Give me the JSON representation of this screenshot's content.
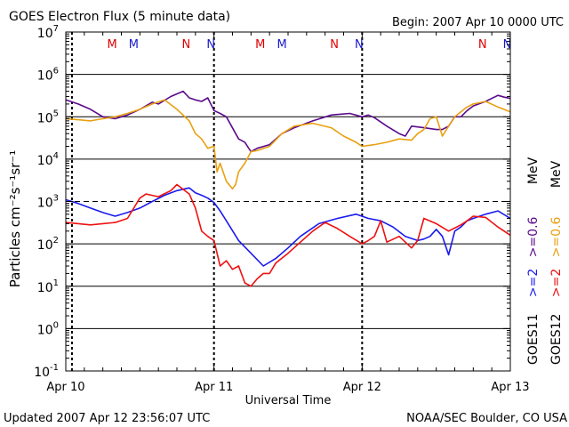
{
  "chart_data": {
    "type": "line",
    "title": "GOES Electron Flux (5 minute data)",
    "begin_label": "Begin: 2007 Apr 10 0000 UTC",
    "xlabel": "Universal Time",
    "ylabel": "Particles cm⁻²s⁻¹sr⁻¹",
    "y_scale": "log",
    "ylim_exp": [
      -1,
      7
    ],
    "y_ticks": [
      {
        "base": "10",
        "exp": "7"
      },
      {
        "base": "10",
        "exp": "6"
      },
      {
        "base": "10",
        "exp": "5"
      },
      {
        "base": "10",
        "exp": "4"
      },
      {
        "base": "10",
        "exp": "3"
      },
      {
        "base": "10",
        "exp": "2"
      },
      {
        "base": "10",
        "exp": "1"
      },
      {
        "base": "10",
        "exp": "0"
      },
      {
        "base": "10",
        "exp": "-1"
      }
    ],
    "xlim_hours": [
      0,
      72
    ],
    "x_ticks": [
      {
        "hour": 0,
        "label": "Apr 10"
      },
      {
        "hour": 24,
        "label": "Apr 11"
      },
      {
        "hour": 48,
        "label": "Apr 12"
      },
      {
        "hour": 72,
        "label": "Apr 13"
      }
    ],
    "dashed_hlines_exp": [
      3
    ],
    "dashed_vlines_hours": [
      1,
      24,
      48
    ],
    "mn_markers": [
      {
        "hour": 7.5,
        "label": "M",
        "color": "#e00000"
      },
      {
        "hour": 11,
        "label": "M",
        "color": "#1a1acc"
      },
      {
        "hour": 19.5,
        "label": "N",
        "color": "#e00000"
      },
      {
        "hour": 23.5,
        "label": "N",
        "color": "#1a1acc"
      },
      {
        "hour": 31.5,
        "label": "M",
        "color": "#e00000"
      },
      {
        "hour": 35,
        "label": "M",
        "color": "#1a1acc"
      },
      {
        "hour": 43.5,
        "label": "N",
        "color": "#e00000"
      },
      {
        "hour": 47.5,
        "label": "N",
        "color": "#1a1acc"
      },
      {
        "hour": 67.5,
        "label": "N",
        "color": "#e00000"
      },
      {
        "hour": 71.5,
        "label": "N",
        "color": "#1a1acc"
      }
    ],
    "series": [
      {
        "name": "GOES11 >=0.6 MeV",
        "color": "#5a0a8c",
        "x": [
          0,
          2,
          4,
          6,
          8,
          10,
          12,
          14,
          15,
          17,
          19,
          20,
          21,
          22,
          23,
          24,
          25,
          26,
          28,
          29,
          30,
          31,
          33,
          35,
          37,
          40,
          43,
          46,
          48,
          49,
          50,
          52,
          54,
          55,
          56,
          58,
          60,
          61,
          62,
          63,
          64,
          65,
          66,
          68,
          70,
          71,
          72
        ],
        "y": [
          250000.0,
          200000.0,
          150000.0,
          100000.0,
          90000.0,
          110000.0,
          150000.0,
          220000.0,
          200000.0,
          300000.0,
          400000.0,
          280000.0,
          250000.0,
          230000.0,
          280000.0,
          140000.0,
          120000.0,
          100000.0,
          30000.0,
          25000.0,
          15000.0,
          18000.0,
          22000.0,
          40000.0,
          55000.0,
          80000.0,
          110000.0,
          120000.0,
          100000.0,
          110000.0,
          95000.0,
          60000.0,
          40000.0,
          35000.0,
          60000.0,
          55000.0,
          50000.0,
          50000.0,
          60000.0,
          100000.0,
          100000.0,
          140000.0,
          180000.0,
          230000.0,
          320000.0,
          290000.0,
          270000.0
        ]
      },
      {
        "name": "GOES12 >=0.6 MeV",
        "color": "#e8a010",
        "x": [
          0,
          2,
          4,
          6,
          8,
          10,
          12,
          14,
          16,
          18,
          20,
          21,
          22,
          23,
          24,
          24.5,
          25,
          26,
          27,
          27.5,
          28,
          29,
          30,
          31,
          33,
          35,
          37,
          40,
          43,
          45,
          47,
          48,
          50,
          52,
          54,
          56,
          57,
          58,
          59,
          60,
          61,
          62,
          63,
          64,
          65,
          66,
          68,
          70,
          72
        ],
        "y": [
          90000.0,
          85000.0,
          80000.0,
          90000.0,
          100000.0,
          120000.0,
          150000.0,
          200000.0,
          250000.0,
          150000.0,
          80000.0,
          40000.0,
          30000.0,
          18000.0,
          20000.0,
          5000.0,
          8000.0,
          3000.0,
          2000.0,
          2500.0,
          5000.0,
          8000.0,
          15000.0,
          16000.0,
          20000.0,
          40000.0,
          60000.0,
          70000.0,
          55000.0,
          35000.0,
          25000.0,
          20000.0,
          22000.0,
          25000.0,
          30000.0,
          28000.0,
          40000.0,
          50000.0,
          90000.0,
          100000.0,
          35000.0,
          60000.0,
          100000.0,
          130000.0,
          170000.0,
          200000.0,
          230000.0,
          170000.0,
          130000.0
        ]
      },
      {
        "name": "GOES11 >=2 MeV",
        "color": "#1a1aee",
        "x": [
          0,
          2,
          4,
          6,
          8,
          10,
          12,
          14,
          16,
          18,
          20,
          21,
          22,
          23,
          24,
          25,
          26,
          28,
          30,
          32,
          34,
          36,
          38,
          41,
          44,
          47,
          49,
          51,
          53,
          55,
          57,
          58,
          59,
          60,
          61,
          62,
          63,
          64,
          65,
          66,
          68,
          70,
          72
        ],
        "y": [
          1100.0,
          900.0,
          700.0,
          550.0,
          450.0,
          550.0,
          700.0,
          1000.0,
          1400.0,
          1800.0,
          2100.0,
          1600.0,
          1400.0,
          1200.0,
          950.0,
          600.0,
          350.0,
          120.0,
          60.0,
          30.0,
          45.0,
          80.0,
          150.0,
          300.0,
          400.0,
          500.0,
          400.0,
          350.0,
          250.0,
          150.0,
          120.0,
          130.0,
          150.0,
          220.0,
          150.0,
          55.0,
          200.0,
          250.0,
          350.0,
          400.0,
          500.0,
          600.0,
          400.0
        ]
      },
      {
        "name": "GOES12 >=2 MeV",
        "color": "#ee1010",
        "x": [
          0,
          2,
          4,
          6,
          8,
          10,
          12,
          13,
          15,
          17,
          18,
          20,
          21,
          22,
          23,
          24,
          25,
          26,
          27,
          28,
          29,
          30,
          31,
          32,
          33,
          34,
          36,
          38,
          40,
          42,
          44,
          46,
          48,
          49,
          50,
          51,
          52,
          54,
          56,
          57,
          58,
          60,
          62,
          64,
          65,
          66,
          68,
          70,
          72
        ],
        "y": [
          320.0,
          300.0,
          280.0,
          300.0,
          320.0,
          400.0,
          1200.0,
          1500.0,
          1300.0,
          1800.0,
          2500.0,
          1500.0,
          700.0,
          200.0,
          150.0,
          120.0,
          30.0,
          40.0,
          25.0,
          30.0,
          12.0,
          10.0,
          15.0,
          20.0,
          20.0,
          35.0,
          60.0,
          110.0,
          200.0,
          320.0,
          230.0,
          150.0,
          100.0,
          120.0,
          150.0,
          350.0,
          110.0,
          150.0,
          80.0,
          120.0,
          400.0,
          300.0,
          200.0,
          280.0,
          350.0,
          450.0,
          420.0,
          250.0,
          160.0
        ]
      }
    ],
    "legend_left": {
      "goes": "GOES11",
      "mev_label": "MeV",
      "entries": [
        {
          "label": ">=2",
          "color": "#1a1aee"
        },
        {
          "label": ">=0.6",
          "color": "#5a0a8c"
        }
      ]
    },
    "legend_right": {
      "goes": "GOES12",
      "mev_label": "MeV",
      "entries": [
        {
          "label": ">=2",
          "color": "#ee1010"
        },
        {
          "label": ">=0.6",
          "color": "#e8a010"
        }
      ]
    },
    "footer_left": "Updated 2007 Apr 12 23:56:07 UTC",
    "footer_right": "NOAA/SEC Boulder, CO USA"
  }
}
